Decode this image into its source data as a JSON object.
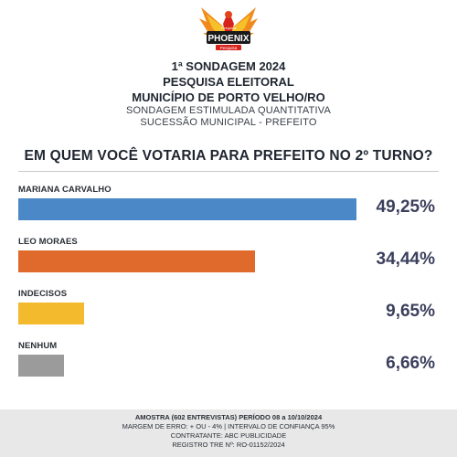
{
  "header": {
    "title_line1": "1ª SONDAGEM 2024",
    "title_line2": "PESQUISA ELEITORAL",
    "title_line3": "MUNICÍPIO DE PORTO VELHO/RO",
    "subtitle_line1": "SONDAGEM ESTIMULADA QUANTITATIVA",
    "subtitle_line2": "SUCESSÃO MUNICIPAL - PREFEITO"
  },
  "logo": {
    "small_text": "Pesquisa",
    "brand": "PHOENIX",
    "tagline": "Pesquisa"
  },
  "chart_data": {
    "type": "bar",
    "orientation": "horizontal",
    "title": "EM QUEM VOCÊ VOTARIA PARA PREFEITO NO 2º TURNO?",
    "xlim": [
      0,
      60
    ],
    "categories": [
      "MARIANA CARVALHO",
      "LEO MORAES",
      "INDECISOS",
      "NENHUM"
    ],
    "values": [
      49.25,
      34.44,
      9.65,
      6.66
    ],
    "value_labels": [
      "49,25%",
      "34,44%",
      "9,65%",
      "6,66%"
    ],
    "colors": [
      "#4a88c8",
      "#e06a2c",
      "#f2ba2c",
      "#9b9b9b"
    ],
    "grid": false
  },
  "footer": {
    "line1": "AMOSTRA (602 ENTREVISTAS) PERÍODO 08 a 10/10/2024",
    "line2": "MARGEM DE ERRO: + OU - 4% | INTERVALO DE CONFIANÇA 95%",
    "line3": "CONTRATANTE: ABC PUBLICIDADE",
    "line4": "REGISTRO TRE Nº: RO-01152/2024"
  }
}
